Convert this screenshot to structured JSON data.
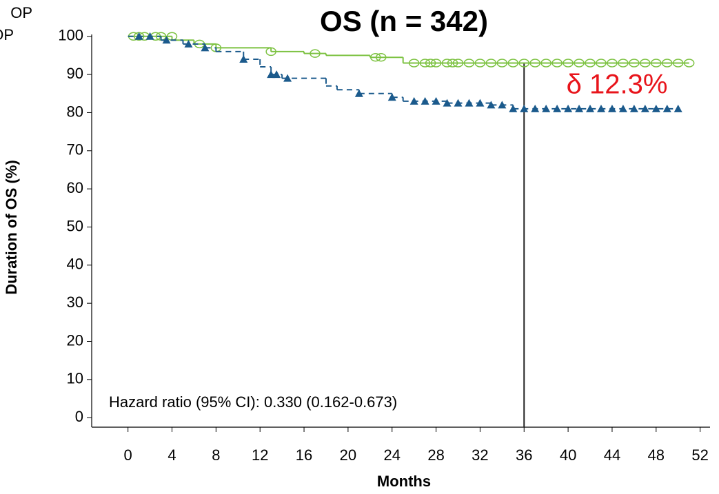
{
  "chart_data": {
    "type": "km",
    "title": "OS (n = 342)",
    "x_label": "Months",
    "y_label": "Duration of OS (%)",
    "annotation": "δ 12.3%",
    "hazard_text": "Hazard ratio (95% CI): 0.330 (0.162-0.673)",
    "ref_x": 36,
    "xlim": [
      -3.3,
      52.9
    ],
    "ylim": [
      -2.5,
      100.5
    ],
    "xticks": [
      0,
      4,
      8,
      12,
      16,
      20,
      24,
      28,
      32,
      36,
      40,
      44,
      48,
      52
    ],
    "yticks": [
      0,
      10,
      20,
      30,
      40,
      50,
      60,
      70,
      80,
      90,
      100
    ],
    "series": [
      {
        "name": "OP",
        "color": "#7dc242",
        "marker": "circle",
        "dash": false,
        "x": [
          0,
          4,
          6,
          8,
          13,
          16,
          18,
          22,
          25,
          51
        ],
        "values": [
          100,
          99,
          98,
          97,
          96,
          95.5,
          95,
          94.5,
          93,
          93
        ],
        "censor_x": [
          0.5,
          1,
          1.5,
          2.5,
          3,
          4,
          6.5,
          8,
          13,
          17,
          22.5,
          23,
          26,
          27,
          27.5,
          28,
          29,
          29.5,
          30,
          31,
          32,
          33,
          34,
          35,
          36,
          37,
          38,
          39,
          40,
          41,
          42,
          43,
          44,
          45,
          46,
          47,
          48,
          49,
          50,
          51
        ],
        "censor_y": [
          100,
          100,
          100,
          100,
          100,
          100,
          98,
          97,
          96,
          95.5,
          94.5,
          94.5,
          93,
          93,
          93,
          93,
          93,
          93,
          93,
          93,
          93,
          93,
          93,
          93,
          93,
          93,
          93,
          93,
          93,
          93,
          93,
          93,
          93,
          93,
          93,
          93,
          93,
          93,
          93,
          93
        ]
      },
      {
        "name": "OP",
        "color": "#1b5a8c",
        "marker": "triangle",
        "dash": true,
        "x": [
          0,
          3,
          5,
          7,
          8,
          10.5,
          12,
          13,
          14,
          18,
          19,
          21,
          24,
          25,
          29,
          33,
          35,
          50
        ],
        "values": [
          100,
          99,
          98,
          97,
          96,
          94,
          92,
          90,
          89,
          87,
          86,
          85,
          84,
          83,
          82.5,
          82,
          81,
          81
        ],
        "censor_x": [
          1,
          2,
          3.5,
          5.5,
          7,
          10.5,
          13,
          13.5,
          14.5,
          21,
          24,
          26,
          27,
          28,
          29,
          30,
          31,
          32,
          33,
          34,
          35,
          36,
          37,
          38,
          39,
          40,
          41,
          42,
          43,
          44,
          45,
          46,
          47,
          48,
          49,
          50
        ],
        "censor_y": [
          100,
          100,
          99,
          98,
          97,
          94,
          90,
          90,
          89,
          85,
          84,
          83,
          83,
          83,
          82.5,
          82.5,
          82.5,
          82.5,
          82,
          82,
          81,
          81,
          81,
          81,
          81,
          81,
          81,
          81,
          81,
          81,
          81,
          81,
          81,
          81,
          81,
          81
        ]
      }
    ]
  }
}
